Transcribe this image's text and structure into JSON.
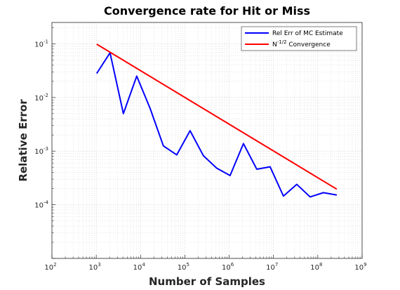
{
  "chart_data": {
    "type": "line",
    "title": "Convergence rate for Hit or Miss",
    "xlabel": "Number of Samples",
    "ylabel": "Relative Error",
    "xscale": "log",
    "yscale": "log",
    "xlim": [
      100,
      1000000000
    ],
    "ylim": [
      1e-05,
      0.25
    ],
    "grid": true,
    "minor_grid": true,
    "legend_position": "top-right",
    "x_ticks": [
      {
        "base": "10",
        "exp": "2"
      },
      {
        "base": "10",
        "exp": "3"
      },
      {
        "base": "10",
        "exp": "4"
      },
      {
        "base": "10",
        "exp": "5"
      },
      {
        "base": "10",
        "exp": "6"
      },
      {
        "base": "10",
        "exp": "7"
      },
      {
        "base": "10",
        "exp": "8"
      },
      {
        "base": "10",
        "exp": "9"
      }
    ],
    "y_ticks": [
      {
        "base": "10",
        "exp": "-4"
      },
      {
        "base": "10",
        "exp": "-3"
      },
      {
        "base": "10",
        "exp": "-2"
      },
      {
        "base": "10",
        "exp": "-1"
      }
    ],
    "series": [
      {
        "name": "Rel Err of MC Estimate",
        "color": "#0000ff",
        "x": [
          1024,
          2048,
          4096,
          8192,
          16384,
          32768,
          65536,
          131072,
          262144,
          524288,
          1048576,
          2097152,
          4194304,
          8388608,
          16777216,
          33554432,
          67108864,
          134217728,
          268435456
        ],
        "y": [
          0.028,
          0.068,
          0.005,
          0.025,
          0.0063,
          0.00125,
          0.00085,
          0.0024,
          0.00082,
          0.00048,
          0.00035,
          0.00138,
          0.00046,
          0.00051,
          0.000145,
          0.00024,
          0.00014,
          0.000168,
          0.000152
        ]
      },
      {
        "name_prefix": "N",
        "name_sup": "-1/2",
        "name_suffix": " Convergence",
        "color": "#ff0000",
        "x": [
          1024,
          268435456
        ],
        "y": [
          0.0985,
          0.000195
        ]
      }
    ]
  }
}
